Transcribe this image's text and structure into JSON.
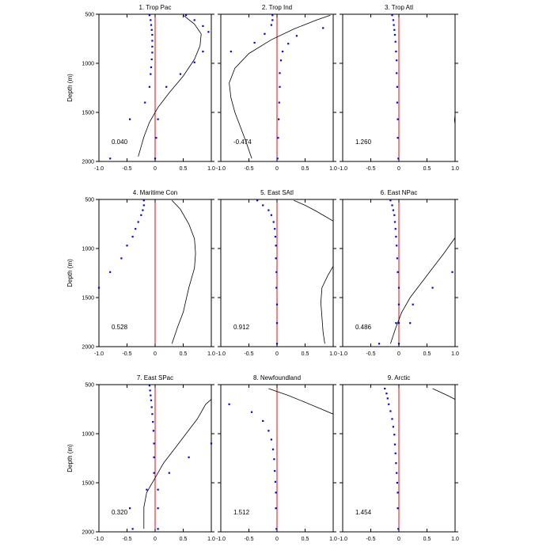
{
  "figure": {
    "ylabel": "Depth (m)",
    "x_tick_labels": [
      "-1.0",
      "-0.5",
      "0",
      "0.5",
      "1.0"
    ],
    "y_tick_labels": [
      "500",
      "1000",
      "1500",
      "2000"
    ],
    "zero_line_color": "#ff0000",
    "point_color": "#0000ff",
    "curve_color": "#000000"
  },
  "chart_data": [
    {
      "type": "scatter",
      "title": "1. Trop Pac",
      "annotation": "0.040",
      "xlim": [
        -1.0,
        1.0
      ],
      "ylim": [
        500,
        2000
      ],
      "y_inverted": true,
      "points": [
        [
          -0.1,
          510
        ],
        [
          -0.08,
          560
        ],
        [
          -0.07,
          610
        ],
        [
          -0.06,
          660
        ],
        [
          -0.05,
          710
        ],
        [
          -0.05,
          770
        ],
        [
          -0.05,
          830
        ],
        [
          -0.05,
          890
        ],
        [
          -0.06,
          960
        ],
        [
          -0.07,
          1040
        ],
        [
          -0.08,
          1110
        ],
        [
          -0.1,
          1240
        ],
        [
          -0.18,
          1400
        ],
        [
          -0.45,
          1570
        ],
        [
          0.05,
          1570
        ],
        [
          0.02,
          1760
        ],
        [
          0.0,
          1970
        ],
        [
          -0.8,
          1970
        ],
        [
          0.2,
          1240
        ],
        [
          0.45,
          1110
        ],
        [
          0.7,
          990
        ],
        [
          0.85,
          880
        ],
        [
          0.95,
          680
        ],
        [
          0.85,
          620
        ],
        [
          0.7,
          560
        ],
        [
          0.55,
          510
        ]
      ],
      "curve": [
        [
          0.5,
          510
        ],
        [
          0.7,
          600
        ],
        [
          0.82,
          700
        ],
        [
          0.8,
          820
        ],
        [
          0.7,
          960
        ],
        [
          0.5,
          1130
        ],
        [
          0.25,
          1300
        ],
        [
          0.05,
          1450
        ],
        [
          -0.1,
          1600
        ],
        [
          -0.2,
          1750
        ],
        [
          -0.3,
          1950
        ]
      ]
    },
    {
      "type": "scatter",
      "title": "2. Trop Ind",
      "annotation": "-0.474",
      "xlim": [
        -1.0,
        1.0
      ],
      "ylim": [
        500,
        2000
      ],
      "y_inverted": true,
      "points": [
        [
          -0.08,
          510
        ],
        [
          -0.08,
          560
        ],
        [
          -0.1,
          610
        ],
        [
          -0.22,
          700
        ],
        [
          -0.4,
          790
        ],
        [
          -0.82,
          880
        ],
        [
          0.82,
          640
        ],
        [
          0.35,
          720
        ],
        [
          0.2,
          800
        ],
        [
          0.1,
          880
        ],
        [
          0.07,
          970
        ],
        [
          0.05,
          1100
        ],
        [
          0.05,
          1240
        ],
        [
          0.04,
          1400
        ],
        [
          0.03,
          1570
        ],
        [
          0.02,
          1760
        ],
        [
          0.01,
          1970
        ]
      ],
      "curve": [
        [
          0.95,
          510
        ],
        [
          0.7,
          560
        ],
        [
          0.3,
          650
        ],
        [
          -0.1,
          760
        ],
        [
          -0.5,
          900
        ],
        [
          -0.75,
          1050
        ],
        [
          -0.85,
          1200
        ],
        [
          -0.82,
          1350
        ],
        [
          -0.75,
          1500
        ],
        [
          -0.65,
          1650
        ],
        [
          -0.55,
          1800
        ],
        [
          -0.45,
          1970
        ]
      ]
    },
    {
      "type": "scatter",
      "title": "3. Trop Atl",
      "annotation": "1.260",
      "xlim": [
        -1.0,
        1.0
      ],
      "ylim": [
        500,
        2000
      ],
      "y_inverted": true,
      "points": [
        [
          -0.12,
          510
        ],
        [
          -0.1,
          560
        ],
        [
          -0.09,
          610
        ],
        [
          -0.08,
          660
        ],
        [
          -0.07,
          710
        ],
        [
          -0.06,
          780
        ],
        [
          -0.05,
          880
        ],
        [
          -0.04,
          970
        ],
        [
          -0.04,
          1100
        ],
        [
          -0.03,
          1240
        ],
        [
          -0.03,
          1400
        ],
        [
          -0.02,
          1570
        ],
        [
          -0.02,
          1760
        ],
        [
          -0.01,
          1970
        ]
      ],
      "curve": [
        [
          1.0,
          1530
        ],
        [
          0.99,
          1580
        ],
        [
          1.0,
          1620
        ]
      ]
    },
    {
      "type": "scatter",
      "title": "4. Maritime Con",
      "annotation": "0.528",
      "xlim": [
        -1.0,
        1.0
      ],
      "ylim": [
        500,
        2000
      ],
      "y_inverted": true,
      "points": [
        [
          -0.2,
          510
        ],
        [
          -0.2,
          560
        ],
        [
          -0.22,
          610
        ],
        [
          -0.25,
          660
        ],
        [
          -0.3,
          730
        ],
        [
          -0.35,
          800
        ],
        [
          -0.4,
          880
        ],
        [
          -0.5,
          970
        ],
        [
          -0.6,
          1100
        ],
        [
          -0.8,
          1240
        ],
        [
          -1.0,
          1400
        ]
      ],
      "curve": [
        [
          0.3,
          510
        ],
        [
          0.45,
          600
        ],
        [
          0.6,
          750
        ],
        [
          0.7,
          900
        ],
        [
          0.72,
          1050
        ],
        [
          0.7,
          1200
        ],
        [
          0.6,
          1400
        ],
        [
          0.5,
          1650
        ],
        [
          0.4,
          1800
        ],
        [
          0.3,
          1970
        ]
      ]
    },
    {
      "type": "scatter",
      "title": "5. East SAtl",
      "annotation": "0.912",
      "xlim": [
        -1.0,
        1.0
      ],
      "ylim": [
        500,
        2000
      ],
      "y_inverted": true,
      "points": [
        [
          -0.35,
          510
        ],
        [
          -0.25,
          560
        ],
        [
          -0.15,
          610
        ],
        [
          -0.1,
          660
        ],
        [
          -0.06,
          730
        ],
        [
          -0.04,
          800
        ],
        [
          -0.03,
          880
        ],
        [
          -0.02,
          970
        ],
        [
          -0.02,
          1100
        ],
        [
          -0.01,
          1240
        ],
        [
          -0.01,
          1400
        ],
        [
          0.0,
          1570
        ],
        [
          0.0,
          1760
        ],
        [
          0.0,
          1970
        ]
      ],
      "top_curve": [
        [
          0.3,
          510
        ],
        [
          0.5,
          560
        ],
        [
          0.7,
          620
        ],
        [
          0.85,
          670
        ],
        [
          1.0,
          720
        ]
      ],
      "curve": [
        [
          1.0,
          1180
        ],
        [
          0.9,
          1280
        ],
        [
          0.8,
          1400
        ],
        [
          0.78,
          1550
        ],
        [
          0.8,
          1700
        ],
        [
          0.82,
          1850
        ],
        [
          0.85,
          1970
        ]
      ]
    },
    {
      "type": "scatter",
      "title": "6. East NPac",
      "annotation": "0.486",
      "xlim": [
        -1.0,
        1.0
      ],
      "ylim": [
        500,
        2000
      ],
      "y_inverted": true,
      "points": [
        [
          -0.15,
          510
        ],
        [
          -0.12,
          560
        ],
        [
          -0.1,
          610
        ],
        [
          -0.08,
          660
        ],
        [
          -0.07,
          730
        ],
        [
          -0.06,
          800
        ],
        [
          -0.05,
          880
        ],
        [
          -0.04,
          970
        ],
        [
          -0.03,
          1100
        ],
        [
          -0.02,
          1240
        ],
        [
          0.0,
          1400
        ],
        [
          0.0,
          1570
        ],
        [
          0.0,
          1760
        ],
        [
          -0.05,
          1760
        ],
        [
          0.2,
          1760
        ],
        [
          0.25,
          1570
        ],
        [
          0.6,
          1400
        ],
        [
          0.95,
          1240
        ],
        [
          -0.35,
          1970
        ],
        [
          0.0,
          1970
        ]
      ],
      "curve": [
        [
          1.0,
          890
        ],
        [
          0.8,
          1050
        ],
        [
          0.6,
          1200
        ],
        [
          0.4,
          1350
        ],
        [
          0.2,
          1500
        ],
        [
          0.05,
          1650
        ],
        [
          -0.05,
          1800
        ],
        [
          -0.15,
          1970
        ]
      ]
    },
    {
      "type": "scatter",
      "title": "7. East SPac",
      "annotation": "0.320",
      "xlim": [
        -1.0,
        1.0
      ],
      "ylim": [
        500,
        2000
      ],
      "y_inverted": true,
      "points": [
        [
          -0.1,
          510
        ],
        [
          -0.09,
          560
        ],
        [
          -0.08,
          610
        ],
        [
          -0.07,
          660
        ],
        [
          -0.06,
          730
        ],
        [
          -0.05,
          800
        ],
        [
          -0.04,
          880
        ],
        [
          -0.03,
          970
        ],
        [
          -0.02,
          1100
        ],
        [
          -0.02,
          1240
        ],
        [
          -0.02,
          1400
        ],
        [
          -0.15,
          1570
        ],
        [
          0.05,
          1570
        ],
        [
          -0.45,
          1760
        ],
        [
          0.05,
          1760
        ],
        [
          -0.4,
          1970
        ],
        [
          0.05,
          1970
        ],
        [
          0.25,
          1400
        ],
        [
          0.6,
          1240
        ],
        [
          1.0,
          1100
        ]
      ],
      "curve": [
        [
          1.0,
          650
        ],
        [
          0.9,
          700
        ],
        [
          0.75,
          850
        ],
        [
          0.55,
          1000
        ],
        [
          0.35,
          1150
        ],
        [
          0.15,
          1300
        ],
        [
          0.0,
          1450
        ],
        [
          -0.15,
          1600
        ],
        [
          -0.2,
          1750
        ],
        [
          -0.2,
          1970
        ]
      ]
    },
    {
      "type": "scatter",
      "title": "8. Newfoundland",
      "annotation": "1.512",
      "xlim": [
        -1.0,
        1.0
      ],
      "ylim": [
        500,
        2000
      ],
      "y_inverted": true,
      "points": [
        [
          -0.85,
          700
        ],
        [
          -0.45,
          780
        ],
        [
          -0.25,
          870
        ],
        [
          -0.15,
          970
        ],
        [
          -0.1,
          1060
        ],
        [
          -0.07,
          1160
        ],
        [
          -0.05,
          1260
        ],
        [
          -0.04,
          1380
        ],
        [
          -0.03,
          1490
        ],
        [
          -0.02,
          1600
        ],
        [
          -0.02,
          1760
        ],
        [
          -0.01,
          1970
        ]
      ],
      "curve": [
        [
          -0.15,
          540
        ],
        [
          0.2,
          610
        ],
        [
          0.5,
          680
        ],
        [
          0.75,
          740
        ],
        [
          1.0,
          800
        ]
      ]
    },
    {
      "type": "scatter",
      "title": "9. Arctic",
      "annotation": "1.454",
      "xlim": [
        -1.0,
        1.0
      ],
      "ylim": [
        500,
        2000
      ],
      "y_inverted": true,
      "points": [
        [
          -0.25,
          540
        ],
        [
          -0.22,
          590
        ],
        [
          -0.2,
          640
        ],
        [
          -0.18,
          700
        ],
        [
          -0.15,
          770
        ],
        [
          -0.12,
          850
        ],
        [
          -0.1,
          930
        ],
        [
          -0.08,
          1010
        ],
        [
          -0.07,
          1110
        ],
        [
          -0.06,
          1200
        ],
        [
          -0.05,
          1300
        ],
        [
          -0.04,
          1400
        ],
        [
          -0.03,
          1500
        ],
        [
          -0.02,
          1600
        ],
        [
          -0.02,
          1760
        ],
        [
          -0.01,
          1970
        ]
      ],
      "curve": [
        [
          0.6,
          540
        ],
        [
          0.75,
          580
        ],
        [
          0.9,
          620
        ],
        [
          1.0,
          650
        ]
      ]
    }
  ]
}
